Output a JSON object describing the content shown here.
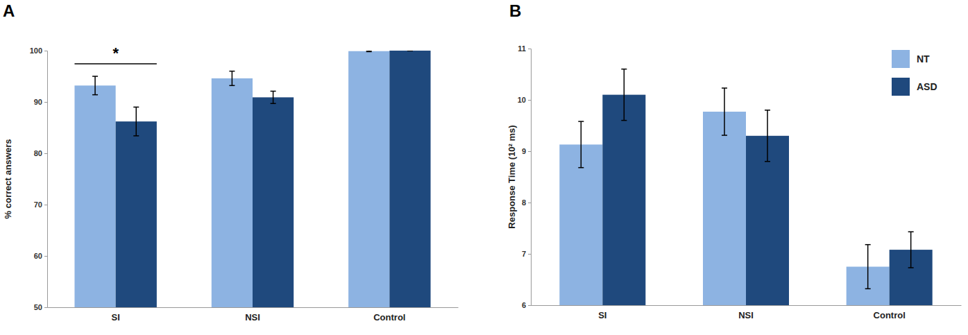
{
  "chart_data": [
    {
      "type": "bar",
      "title": "A",
      "y_label": "% correct answers",
      "categories": [
        "SI",
        "NSI",
        "Control"
      ],
      "series": [
        {
          "name": "NT",
          "color": "#8db3e2",
          "values": [
            93.2,
            94.6,
            99.9
          ],
          "errors": [
            1.8,
            1.4,
            0.1
          ]
        },
        {
          "name": "ASD",
          "color": "#1f497d",
          "values": [
            86.2,
            90.9,
            100
          ],
          "errors": [
            2.8,
            1.2,
            0
          ]
        }
      ],
      "ylim": [
        50,
        100
      ],
      "yticks": [
        50,
        60,
        70,
        80,
        90,
        100
      ],
      "annotations": [
        {
          "text": "*",
          "category": "SI"
        }
      ]
    },
    {
      "type": "bar",
      "title": "B",
      "y_label": "Response Time (10² ms)",
      "categories": [
        "SI",
        "NSI",
        "Control"
      ],
      "series": [
        {
          "name": "NT",
          "color": "#8db3e2",
          "values": [
            9.13,
            9.77,
            6.75
          ],
          "errors": [
            0.45,
            0.46,
            0.43
          ]
        },
        {
          "name": "ASD",
          "color": "#1f497d",
          "values": [
            10.1,
            9.3,
            7.08
          ],
          "errors": [
            0.5,
            0.5,
            0.35
          ]
        }
      ],
      "ylim": [
        6,
        11
      ],
      "yticks": [
        6,
        7,
        8,
        9,
        10,
        11
      ],
      "legend": "upper right"
    }
  ]
}
